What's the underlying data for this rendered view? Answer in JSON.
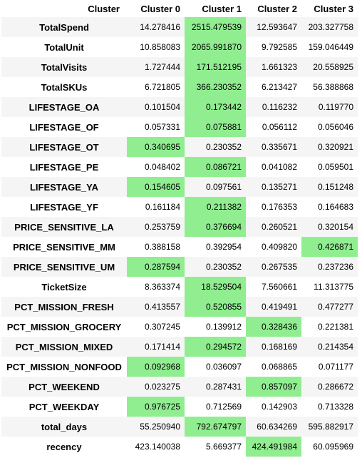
{
  "table": {
    "corner_label": "Cluster",
    "columns": [
      "Cluster 0",
      "Cluster 1",
      "Cluster 2",
      "Cluster 3"
    ],
    "highlight_color": "#90ee90",
    "rows": [
      {
        "label": "TotalSpend",
        "values": [
          "14.278416",
          "2515.479539",
          "12.593647",
          "203.327758"
        ],
        "highlight": 1
      },
      {
        "label": "TotalUnit",
        "values": [
          "10.858083",
          "2065.991870",
          "9.792585",
          "159.046449"
        ],
        "highlight": 1
      },
      {
        "label": "TotalVisits",
        "values": [
          "1.727444",
          "171.512195",
          "1.661323",
          "20.558925"
        ],
        "highlight": 1
      },
      {
        "label": "TotalSKUs",
        "values": [
          "6.721805",
          "366.230352",
          "6.213427",
          "56.388868"
        ],
        "highlight": 1
      },
      {
        "label": "LIFESTAGE_OA",
        "values": [
          "0.101504",
          "0.173442",
          "0.116232",
          "0.119770"
        ],
        "highlight": 1
      },
      {
        "label": "LIFESTAGE_OF",
        "values": [
          "0.057331",
          "0.075881",
          "0.056112",
          "0.056046"
        ],
        "highlight": 1
      },
      {
        "label": "LIFESTAGE_OT",
        "values": [
          "0.340695",
          "0.230352",
          "0.335671",
          "0.320921"
        ],
        "highlight": 0
      },
      {
        "label": "LIFESTAGE_PE",
        "values": [
          "0.048402",
          "0.086721",
          "0.041082",
          "0.059501"
        ],
        "highlight": 1
      },
      {
        "label": "LIFESTAGE_YA",
        "values": [
          "0.154605",
          "0.097561",
          "0.135271",
          "0.151248"
        ],
        "highlight": 0
      },
      {
        "label": "LIFESTAGE_YF",
        "values": [
          "0.161184",
          "0.211382",
          "0.176353",
          "0.164683"
        ],
        "highlight": 1
      },
      {
        "label": "PRICE_SENSITIVE_LA",
        "values": [
          "0.253759",
          "0.376694",
          "0.260521",
          "0.320154"
        ],
        "highlight": 1
      },
      {
        "label": "PRICE_SENSITIVE_MM",
        "values": [
          "0.388158",
          "0.392954",
          "0.409820",
          "0.426871"
        ],
        "highlight": 3
      },
      {
        "label": "PRICE_SENSITIVE_UM",
        "values": [
          "0.287594",
          "0.230352",
          "0.267535",
          "0.237236"
        ],
        "highlight": 0
      },
      {
        "label": "TicketSize",
        "values": [
          "8.363374",
          "18.529504",
          "7.560661",
          "11.313775"
        ],
        "highlight": 1
      },
      {
        "label": "PCT_MISSION_FRESH",
        "values": [
          "0.413557",
          "0.520855",
          "0.419491",
          "0.477277"
        ],
        "highlight": 1
      },
      {
        "label": "PCT_MISSION_GROCERY",
        "values": [
          "0.307245",
          "0.139912",
          "0.328436",
          "0.221381"
        ],
        "highlight": 2
      },
      {
        "label": "PCT_MISSION_MIXED",
        "values": [
          "0.171414",
          "0.294572",
          "0.168169",
          "0.214354"
        ],
        "highlight": 1
      },
      {
        "label": "PCT_MISSION_NONFOOD",
        "values": [
          "0.092968",
          "0.036097",
          "0.068865",
          "0.071177"
        ],
        "highlight": 0
      },
      {
        "label": "PCT_WEEKEND",
        "values": [
          "0.023275",
          "0.287431",
          "0.857097",
          "0.286672"
        ],
        "highlight": 2
      },
      {
        "label": "PCT_WEEKDAY",
        "values": [
          "0.976725",
          "0.712569",
          "0.142903",
          "0.713328"
        ],
        "highlight": 0
      },
      {
        "label": "total_days",
        "values": [
          "55.250940",
          "792.674797",
          "60.634269",
          "595.882917"
        ],
        "highlight": 1
      },
      {
        "label": "recency",
        "values": [
          "423.140038",
          "5.669377",
          "424.491984",
          "60.095969"
        ],
        "highlight": 2
      }
    ]
  }
}
